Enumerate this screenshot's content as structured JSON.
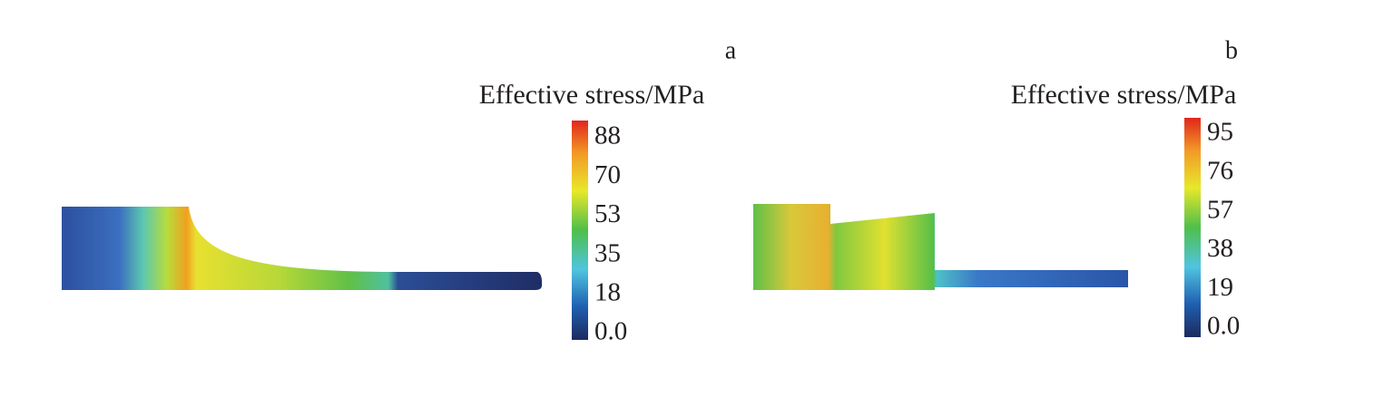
{
  "panels": [
    {
      "label": "a",
      "colorbar": {
        "title": "Effective stress/MPa",
        "ticks": [
          "88",
          "70",
          "53",
          "35",
          "18",
          "0.0"
        ]
      }
    },
    {
      "label": "b",
      "colorbar": {
        "title": "Effective stress/MPa",
        "ticks": [
          "95",
          "76",
          "57",
          "38",
          "19",
          "0.0"
        ]
      }
    }
  ]
}
